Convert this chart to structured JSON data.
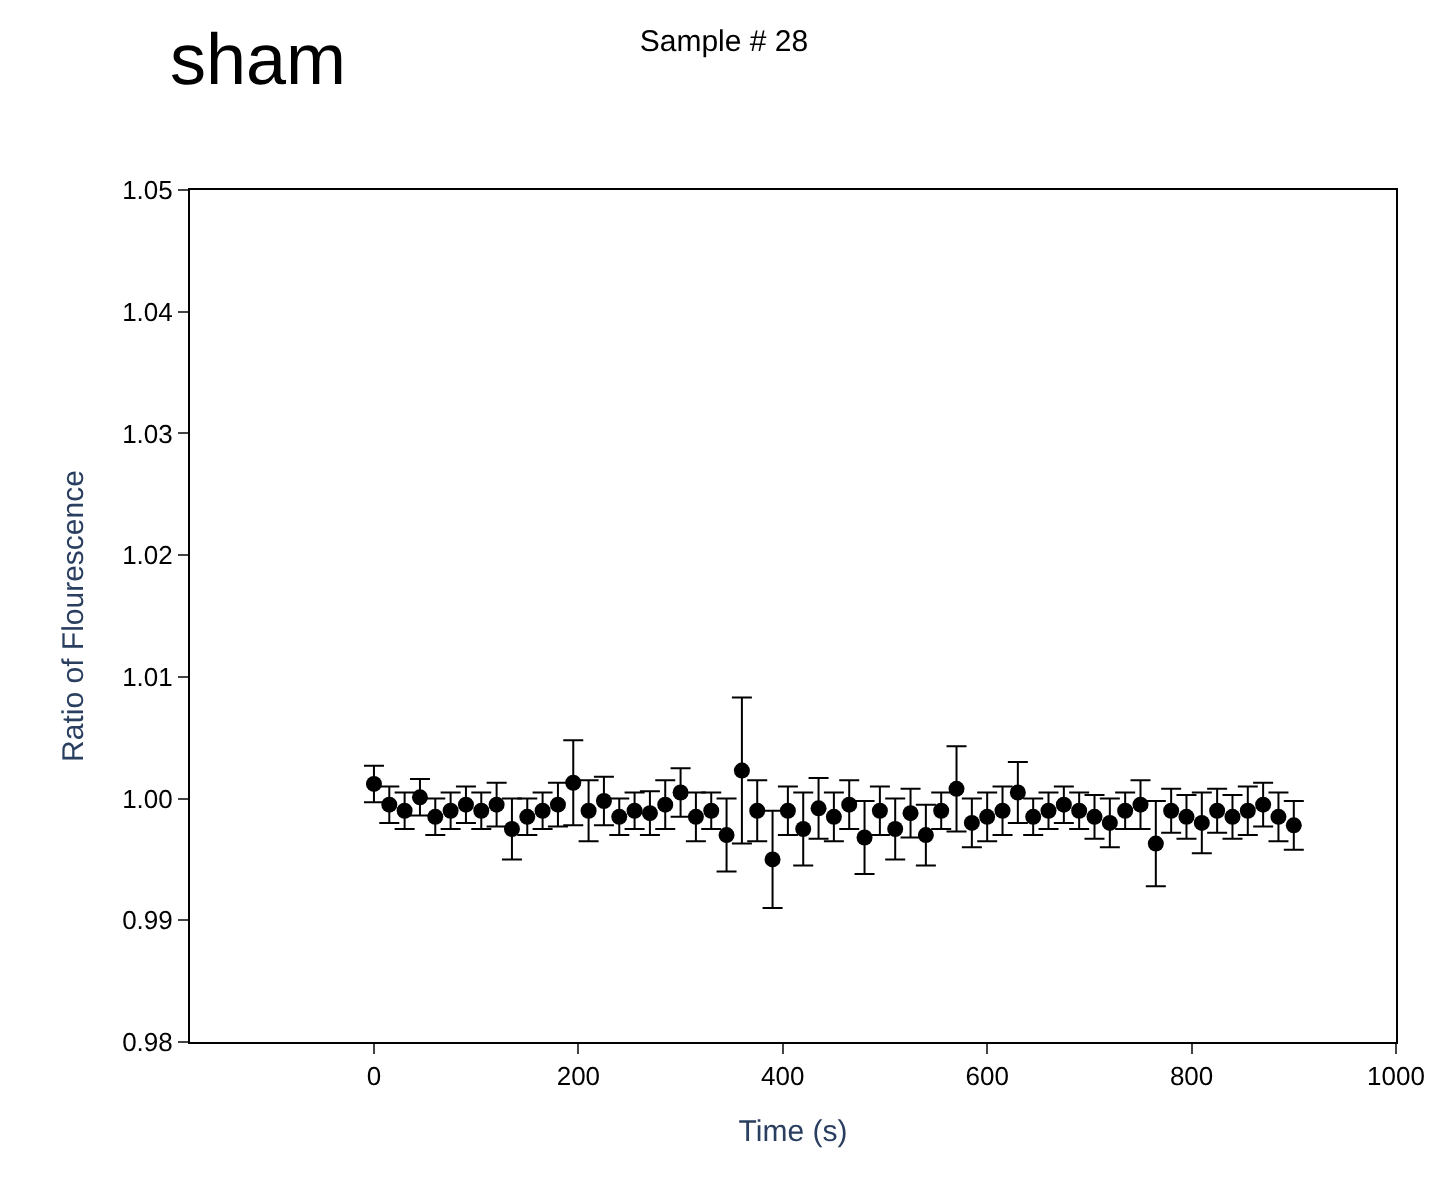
{
  "chart_data": {
    "type": "scatter",
    "title": "Sample # 28",
    "xlabel": "Time (s)",
    "ylabel": "Ratio of Flourescence",
    "annotations": [
      "sham"
    ],
    "x": [
      0,
      15,
      30,
      45,
      60,
      75,
      90,
      105,
      120,
      135,
      150,
      165,
      180,
      195,
      210,
      225,
      240,
      255,
      270,
      285,
      300,
      315,
      330,
      345,
      360,
      375,
      390,
      405,
      420,
      435,
      450,
      465,
      480,
      495,
      510,
      525,
      540,
      555,
      570,
      585,
      600,
      615,
      630,
      645,
      660,
      675,
      690,
      705,
      720,
      735,
      750,
      765,
      780,
      795,
      810,
      825,
      840,
      855,
      870,
      885,
      900
    ],
    "values": [
      1.0012,
      0.9995,
      0.999,
      1.0001,
      0.9985,
      0.999,
      0.9995,
      0.999,
      0.9995,
      0.9975,
      0.9985,
      0.999,
      0.9995,
      1.0013,
      0.999,
      0.9998,
      0.9985,
      0.999,
      0.9988,
      0.9995,
      1.0005,
      0.9985,
      0.999,
      0.997,
      1.0023,
      0.999,
      0.995,
      0.999,
      0.9975,
      0.9992,
      0.9985,
      0.9995,
      0.9968,
      0.999,
      0.9975,
      0.9988,
      0.997,
      0.999,
      1.0008,
      0.998,
      0.9985,
      0.999,
      1.0005,
      0.9985,
      0.999,
      0.9995,
      0.999,
      0.9985,
      0.998,
      0.999,
      0.9995,
      0.9963,
      0.999,
      0.9985,
      0.998,
      0.999,
      0.9985,
      0.999,
      0.9995,
      0.9985,
      0.9978
    ],
    "errors": [
      0.0015,
      0.0015,
      0.0015,
      0.0015,
      0.0015,
      0.0015,
      0.0015,
      0.0015,
      0.0018,
      0.0025,
      0.0015,
      0.0015,
      0.0018,
      0.0035,
      0.0025,
      0.002,
      0.0015,
      0.0015,
      0.0018,
      0.002,
      0.002,
      0.002,
      0.0015,
      0.003,
      0.006,
      0.0025,
      0.004,
      0.002,
      0.003,
      0.0025,
      0.002,
      0.002,
      0.003,
      0.002,
      0.0025,
      0.002,
      0.0025,
      0.0015,
      0.0035,
      0.002,
      0.002,
      0.002,
      0.0025,
      0.0015,
      0.0015,
      0.0015,
      0.0015,
      0.0018,
      0.002,
      0.0015,
      0.002,
      0.0035,
      0.0018,
      0.0018,
      0.0025,
      0.0018,
      0.0018,
      0.002,
      0.0018,
      0.002,
      0.002
    ],
    "color": "#000000",
    "marker": "circle",
    "xlim": [
      -180,
      1000
    ],
    "xticks": [
      0,
      200,
      400,
      600,
      800,
      1000
    ],
    "ylim": [
      0.98,
      1.05
    ],
    "yticks": [
      {
        "value": 0.98,
        "label": "0.98"
      },
      {
        "value": 0.99,
        "label": "0.99"
      },
      {
        "value": 1.0,
        "label": "1.00"
      },
      {
        "value": 1.01,
        "label": "1.01"
      },
      {
        "value": 1.02,
        "label": "1.02"
      },
      {
        "value": 1.03,
        "label": "1.03"
      },
      {
        "value": 1.04,
        "label": "1.04"
      },
      {
        "value": 1.05,
        "label": "1.05"
      }
    ]
  }
}
